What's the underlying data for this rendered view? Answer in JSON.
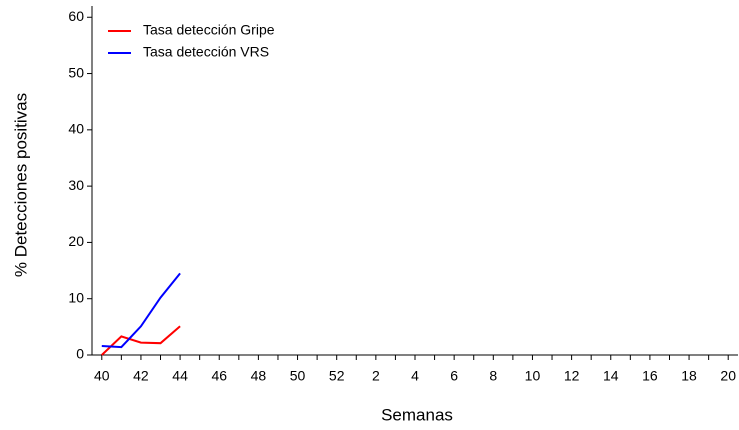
{
  "chart_data": {
    "type": "line",
    "x_label": "Semanas",
    "y_label": "% Detecciones positivas",
    "categories": [
      "40",
      null,
      "42",
      null,
      "44",
      null,
      "46",
      null,
      "48",
      null,
      "50",
      null,
      "52",
      null,
      "2",
      null,
      "4",
      null,
      "6",
      null,
      "8",
      null,
      "10",
      null,
      "12",
      null,
      "14",
      null,
      "16",
      null,
      "18",
      null,
      "20"
    ],
    "series": [
      {
        "name": "Tasa detección Gripe",
        "color": "#ff0000",
        "values": [
          0,
          3.3,
          2.2,
          2.1,
          5.1,
          null,
          null,
          null,
          null,
          null,
          null,
          null,
          null,
          null,
          null,
          null,
          null,
          null,
          null,
          null,
          null,
          null,
          null,
          null,
          null,
          null,
          null,
          null,
          null,
          null,
          null,
          null,
          null
        ]
      },
      {
        "name": "Tasa detección VRS",
        "color": "#0000ff",
        "values": [
          1.6,
          1.4,
          5.1,
          10.2,
          14.5,
          null,
          null,
          null,
          null,
          null,
          null,
          null,
          null,
          null,
          null,
          null,
          null,
          null,
          null,
          null,
          null,
          null,
          null,
          null,
          null,
          null,
          null,
          null,
          null,
          null,
          null,
          null,
          null
        ]
      }
    ],
    "ylim": [
      0,
      62
    ],
    "yticks": [
      0,
      10,
      20,
      30,
      40,
      50,
      60
    ],
    "legend": "upper-left"
  }
}
